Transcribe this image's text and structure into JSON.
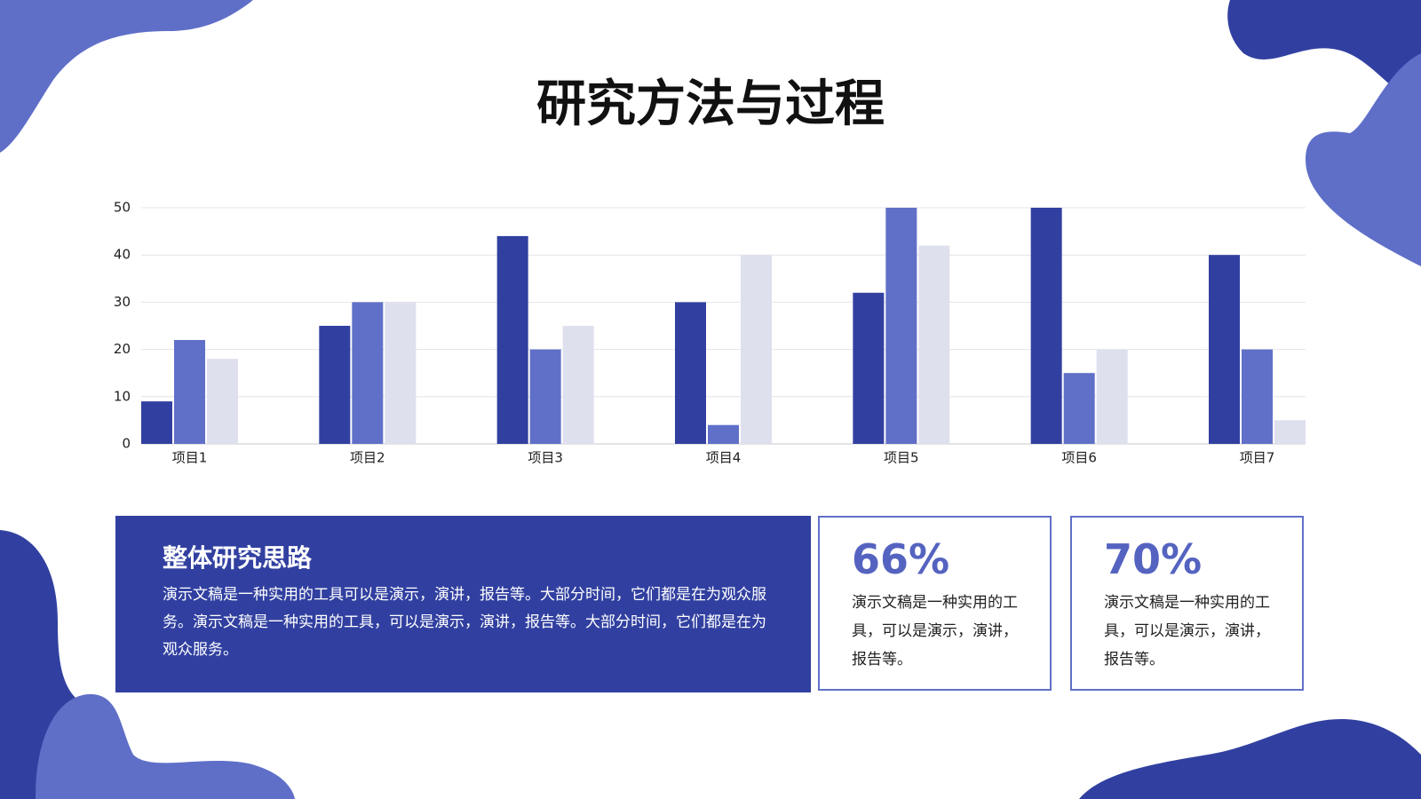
{
  "title": "研究方法与过程",
  "chart_data": {
    "type": "bar",
    "categories": [
      "项目1",
      "项目2",
      "项目3",
      "项目4",
      "项目5",
      "项目6",
      "项目7"
    ],
    "series": [
      {
        "color": "#3140a0",
        "values": [
          9,
          25,
          44,
          30,
          32,
          50,
          40
        ]
      },
      {
        "color": "#6070c8",
        "values": [
          22,
          30,
          20,
          4,
          50,
          15,
          20
        ]
      },
      {
        "color": "#dfe0ee",
        "values": [
          18,
          30,
          25,
          40,
          42,
          20,
          5
        ]
      }
    ],
    "ylim": [
      0,
      50
    ],
    "yticks": [
      0,
      10,
      20,
      30,
      40,
      50
    ],
    "grid": true
  },
  "summary": {
    "title": "整体研究思路",
    "text": "演示文稿是一种实用的工具可以是演示，演讲，报告等。大部分时间，它们都是在为观众服务。演示文稿是一种实用的工具，可以是演示，演讲，报告等。大部分时间，它们都是在为观众服务。"
  },
  "stats": [
    {
      "value": "66%",
      "text": "演示文稿是一种实用的工具，可以是演示，演讲，报告等。"
    },
    {
      "value": "70%",
      "text": "演示文稿是一种实用的工具，可以是演示，演讲，报告等。"
    }
  ]
}
